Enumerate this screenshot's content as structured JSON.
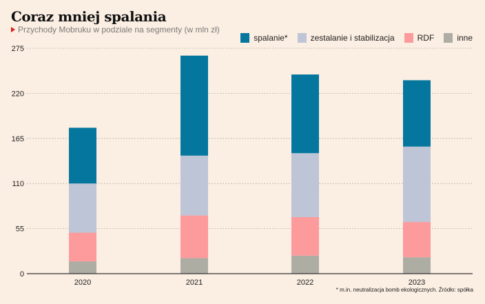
{
  "header": {
    "title": "Coraz mniej spalania",
    "subtitle": "Przychody Mobruku w podziale na segmenty (w mln zł)"
  },
  "footnote": "* m.in. neutralizacja bomb ekologicznych. Źródło: spółka",
  "chart_data": {
    "type": "bar",
    "stacked": true,
    "title": "Coraz mniej spalania",
    "subtitle": "Przychody Mobruku w podziale na segmenty (w mln zł)",
    "xlabel": "",
    "ylabel": "",
    "categories": [
      "2020",
      "2021",
      "2022",
      "2023"
    ],
    "yticks": [
      0,
      55,
      110,
      165,
      220,
      275
    ],
    "ylim": [
      0,
      275
    ],
    "grid": true,
    "legend_position": "top-right",
    "series": [
      {
        "name": "inne",
        "color": "#adada3",
        "values": [
          15,
          19,
          22,
          20
        ]
      },
      {
        "name": "RDF",
        "color": "#fc9a9c",
        "values": [
          35,
          52,
          47,
          43
        ]
      },
      {
        "name": "zestalanie i stabilizacja",
        "color": "#bec5d6",
        "values": [
          60,
          73,
          78,
          92
        ]
      },
      {
        "name": "spalanie*",
        "color": "#05779f",
        "values": [
          68,
          122,
          96,
          81
        ]
      }
    ],
    "legend_order": [
      "spalanie*",
      "zestalanie i stabilizacja",
      "RDF",
      "inne"
    ]
  }
}
